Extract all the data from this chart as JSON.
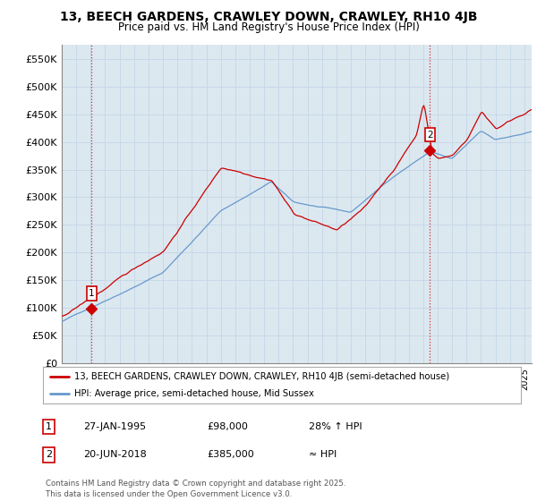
{
  "title": "13, BEECH GARDENS, CRAWLEY DOWN, CRAWLEY, RH10 4JB",
  "subtitle": "Price paid vs. HM Land Registry's House Price Index (HPI)",
  "ylim": [
    0,
    575000
  ],
  "yticks": [
    0,
    50000,
    100000,
    150000,
    200000,
    250000,
    300000,
    350000,
    400000,
    450000,
    500000,
    550000
  ],
  "ytick_labels": [
    "£0",
    "£50K",
    "£100K",
    "£150K",
    "£200K",
    "£250K",
    "£300K",
    "£350K",
    "£400K",
    "£450K",
    "£500K",
    "£550K"
  ],
  "grid_color": "#c8d8e8",
  "bg_color": "#ffffff",
  "plot_bg_color": "#dce8f0",
  "line1_color": "#cc0000",
  "line2_color": "#6699cc",
  "point1_x": 1995.07,
  "point1_y": 98000,
  "point2_x": 2018.47,
  "point2_y": 385000,
  "legend1_label": "13, BEECH GARDENS, CRAWLEY DOWN, CRAWLEY, RH10 4JB (semi-detached house)",
  "legend2_label": "HPI: Average price, semi-detached house, Mid Sussex",
  "table_row1": [
    "1",
    "27-JAN-1995",
    "£98,000",
    "28% ↑ HPI"
  ],
  "table_row2": [
    "2",
    "20-JUN-2018",
    "£385,000",
    "≈ HPI"
  ],
  "footer": "Contains HM Land Registry data © Crown copyright and database right 2025.\nThis data is licensed under the Open Government Licence v3.0.",
  "xmin": 1993.0,
  "xmax": 2025.5
}
